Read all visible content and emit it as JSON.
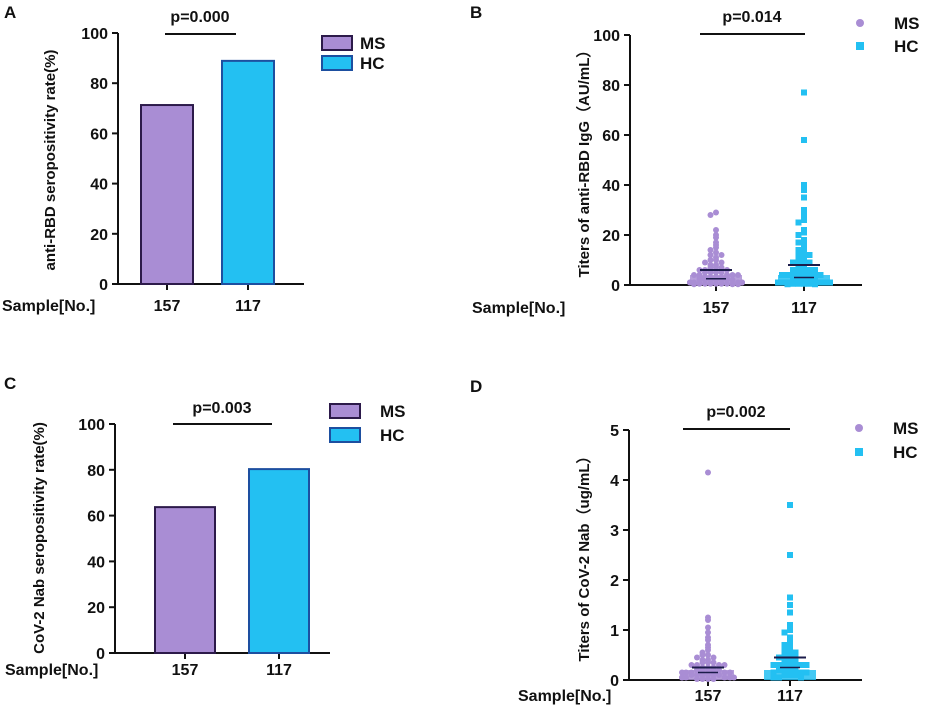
{
  "chart_data": [
    {
      "panel": "A",
      "type": "bar",
      "categories": [
        "MS",
        "HC"
      ],
      "values": [
        71.3,
        88.9
      ],
      "colors": [
        "#A98DD4",
        "#23C0F2"
      ],
      "ylabel": "anti-RBD seropositivity rate(%)",
      "ylim": [
        0,
        100
      ],
      "yticks": [
        "0",
        "20",
        "40",
        "60",
        "80",
        "100"
      ],
      "sample_label": "Sample[No.]",
      "sample_counts": [
        "157",
        "117"
      ],
      "p_value": "p=0.000",
      "legend": [
        "MS",
        "HC"
      ],
      "legend_position": "top-right"
    },
    {
      "panel": "B",
      "type": "scatter",
      "categories": [
        "MS",
        "HC"
      ],
      "colors": [
        "#A98DD4",
        "#23C0F2"
      ],
      "ylabel": "Titers of anti-RBD IgG（AU/mL）",
      "ylim": [
        0,
        100
      ],
      "yticks": [
        "0",
        "20",
        "40",
        "60",
        "80",
        "100"
      ],
      "sample_label": "Sample[No.]",
      "sample_counts": [
        "157",
        "117"
      ],
      "p_value": "p=0.014",
      "legend": [
        "MS",
        "HC"
      ],
      "legend_position": "top-right",
      "series": [
        {
          "name": "MS",
          "mean": 6,
          "median": 2.5,
          "values": [
            29,
            28,
            22,
            20,
            19,
            17,
            16,
            15,
            14,
            13,
            12,
            12,
            11,
            10,
            10,
            9,
            9,
            8,
            8,
            7,
            7,
            7,
            6,
            6,
            6,
            5,
            5,
            5,
            5,
            4,
            4,
            4,
            4,
            4,
            3,
            3,
            3,
            3,
            3,
            3,
            2,
            2,
            2,
            2,
            2,
            2,
            2,
            1,
            1,
            1,
            1,
            1,
            1,
            1,
            1,
            0.5,
            0.5,
            0.5,
            0.5,
            0.5,
            0.5,
            0.3,
            0.3,
            0.3
          ]
        },
        {
          "name": "HC",
          "mean": 8,
          "median": 3,
          "values": [
            77,
            58,
            40,
            38,
            35,
            30,
            28,
            26,
            25,
            22,
            21,
            20,
            18,
            17,
            16,
            15,
            14,
            13,
            12,
            12,
            11,
            10,
            10,
            9,
            9,
            8,
            8,
            7,
            7,
            6,
            6,
            6,
            5,
            5,
            5,
            5,
            4,
            4,
            4,
            4,
            3,
            3,
            3,
            3,
            3,
            2,
            2,
            2,
            2,
            2,
            1,
            1,
            1,
            1,
            1,
            1,
            0.5,
            0.5,
            0.5,
            0.5,
            0.3,
            0.3
          ]
        }
      ]
    },
    {
      "panel": "C",
      "type": "bar",
      "categories": [
        "MS",
        "HC"
      ],
      "values": [
        63.7,
        80.3
      ],
      "colors": [
        "#A98DD4",
        "#23C0F2"
      ],
      "ylabel": "CoV-2 Nab seropositivity rate(%)",
      "ylim": [
        0,
        100
      ],
      "yticks": [
        "0",
        "20",
        "40",
        "60",
        "80",
        "100"
      ],
      "sample_label": "Sample[No.]",
      "sample_counts": [
        "157",
        "117"
      ],
      "p_value": "p=0.003",
      "legend": [
        "MS",
        "HC"
      ],
      "legend_position": "top-right"
    },
    {
      "panel": "D",
      "type": "scatter",
      "categories": [
        "MS",
        "HC"
      ],
      "colors": [
        "#A98DD4",
        "#23C0F2"
      ],
      "ylabel": "Titers of CoV-2 Nab（ug/mL）",
      "ylim": [
        0,
        5
      ],
      "yticks": [
        "0",
        "1",
        "2",
        "3",
        "4",
        "5"
      ],
      "sample_label": "Sample[No.]",
      "sample_counts": [
        "157",
        "117"
      ],
      "p_value": "p=0.002",
      "legend": [
        "MS",
        "HC"
      ],
      "legend_position": "top-right",
      "series": [
        {
          "name": "MS",
          "mean": 0.25,
          "median": 0.15,
          "values": [
            4.15,
            1.25,
            1.2,
            1.05,
            0.95,
            0.85,
            0.8,
            0.7,
            0.65,
            0.6,
            0.55,
            0.5,
            0.5,
            0.45,
            0.45,
            0.4,
            0.4,
            0.35,
            0.35,
            0.35,
            0.3,
            0.3,
            0.3,
            0.3,
            0.25,
            0.25,
            0.25,
            0.25,
            0.2,
            0.2,
            0.2,
            0.2,
            0.2,
            0.15,
            0.15,
            0.15,
            0.15,
            0.15,
            0.1,
            0.1,
            0.1,
            0.1,
            0.1,
            0.1,
            0.05,
            0.05,
            0.05,
            0.05,
            0.05,
            0.05,
            0.02,
            0.02,
            0.02,
            0.02
          ]
        },
        {
          "name": "HC",
          "mean": 0.45,
          "median": 0.25,
          "values": [
            3.5,
            2.5,
            1.65,
            1.5,
            1.35,
            1.1,
            1.0,
            0.95,
            0.85,
            0.8,
            0.75,
            0.7,
            0.65,
            0.6,
            0.6,
            0.55,
            0.5,
            0.5,
            0.45,
            0.45,
            0.4,
            0.4,
            0.4,
            0.35,
            0.35,
            0.35,
            0.3,
            0.3,
            0.3,
            0.3,
            0.25,
            0.25,
            0.25,
            0.25,
            0.2,
            0.2,
            0.2,
            0.2,
            0.15,
            0.15,
            0.15,
            0.1,
            0.1,
            0.1,
            0.05,
            0.05,
            0.05
          ]
        }
      ]
    }
  ]
}
